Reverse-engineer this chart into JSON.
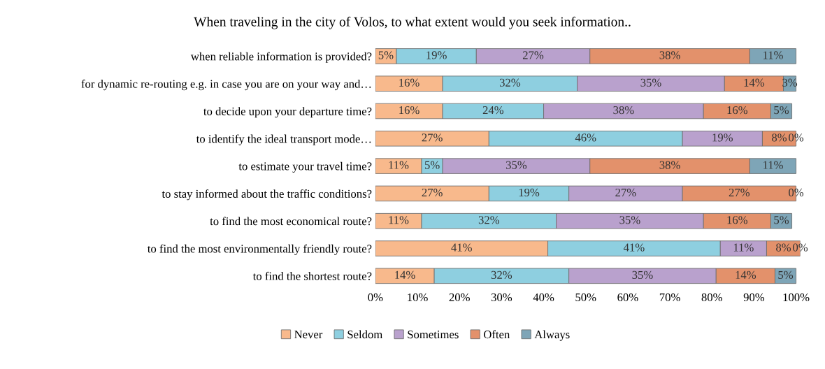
{
  "chart_data": {
    "type": "bar",
    "orientation": "horizontal",
    "stacked": true,
    "title": "When traveling in the city of Volos, to what extent would you seek information..",
    "categories": [
      "when reliable information is provided?",
      "for dynamic re-routing e.g. in case you are on your way and…",
      "to decide upon your departure time?",
      "to identify the ideal transport mode…",
      "to estimate your travel time?",
      "to stay informed about the traffic conditions?",
      "to find the most economical route?",
      "to find the most environmentally friendly route?",
      "to find the shortest route?"
    ],
    "series": [
      {
        "name": "Never",
        "color": "#f8b98c",
        "values": [
          5,
          16,
          16,
          27,
          11,
          27,
          11,
          41,
          14
        ],
        "value_labels": [
          "5%",
          "16%",
          "16%",
          "27%",
          "11%",
          "27%",
          "11%",
          "41%",
          "14%"
        ]
      },
      {
        "name": "Seldom",
        "color": "#8ecfe0",
        "values": [
          19,
          32,
          24,
          46,
          5,
          19,
          32,
          41,
          32
        ],
        "value_labels": [
          "19%",
          "32%",
          "24%",
          "46%",
          "5%",
          "19%",
          "32%",
          "41%",
          "32%"
        ]
      },
      {
        "name": "Sometimes",
        "color": "#b9a1cd",
        "values": [
          27,
          35,
          38,
          19,
          35,
          27,
          35,
          11,
          35
        ],
        "value_labels": [
          "27%",
          "35%",
          "38%",
          "19%",
          "35%",
          "27%",
          "35%",
          "11%",
          "35%"
        ]
      },
      {
        "name": "Often",
        "color": "#e3916b",
        "values": [
          38,
          14,
          16,
          8,
          38,
          27,
          16,
          8,
          14
        ],
        "value_labels": [
          "38%",
          "14%",
          "16%",
          "8%",
          "38%",
          "27%",
          "16%",
          "8%",
          "14%"
        ]
      },
      {
        "name": "Always",
        "color": "#7ea5b7",
        "values": [
          11,
          3,
          5,
          0,
          11,
          0,
          5,
          0,
          5
        ],
        "value_labels": [
          "11%",
          "3%",
          "5%",
          "0%",
          "11%",
          "0%",
          "5%",
          "0%",
          "5%"
        ]
      }
    ],
    "xlim": [
      0,
      101
    ],
    "xticks": [
      {
        "value": 0,
        "label": "0%"
      },
      {
        "value": 10,
        "label": "10%"
      },
      {
        "value": 20,
        "label": "20%"
      },
      {
        "value": 30,
        "label": "30%"
      },
      {
        "value": 40,
        "label": "40%"
      },
      {
        "value": 50,
        "label": "50%"
      },
      {
        "value": 60,
        "label": "60%"
      },
      {
        "value": 70,
        "label": "70%"
      },
      {
        "value": 80,
        "label": "80%"
      },
      {
        "value": 90,
        "label": "90%"
      },
      {
        "value": 100,
        "label": "100%"
      }
    ],
    "grid": false,
    "legend": "bottom"
  }
}
